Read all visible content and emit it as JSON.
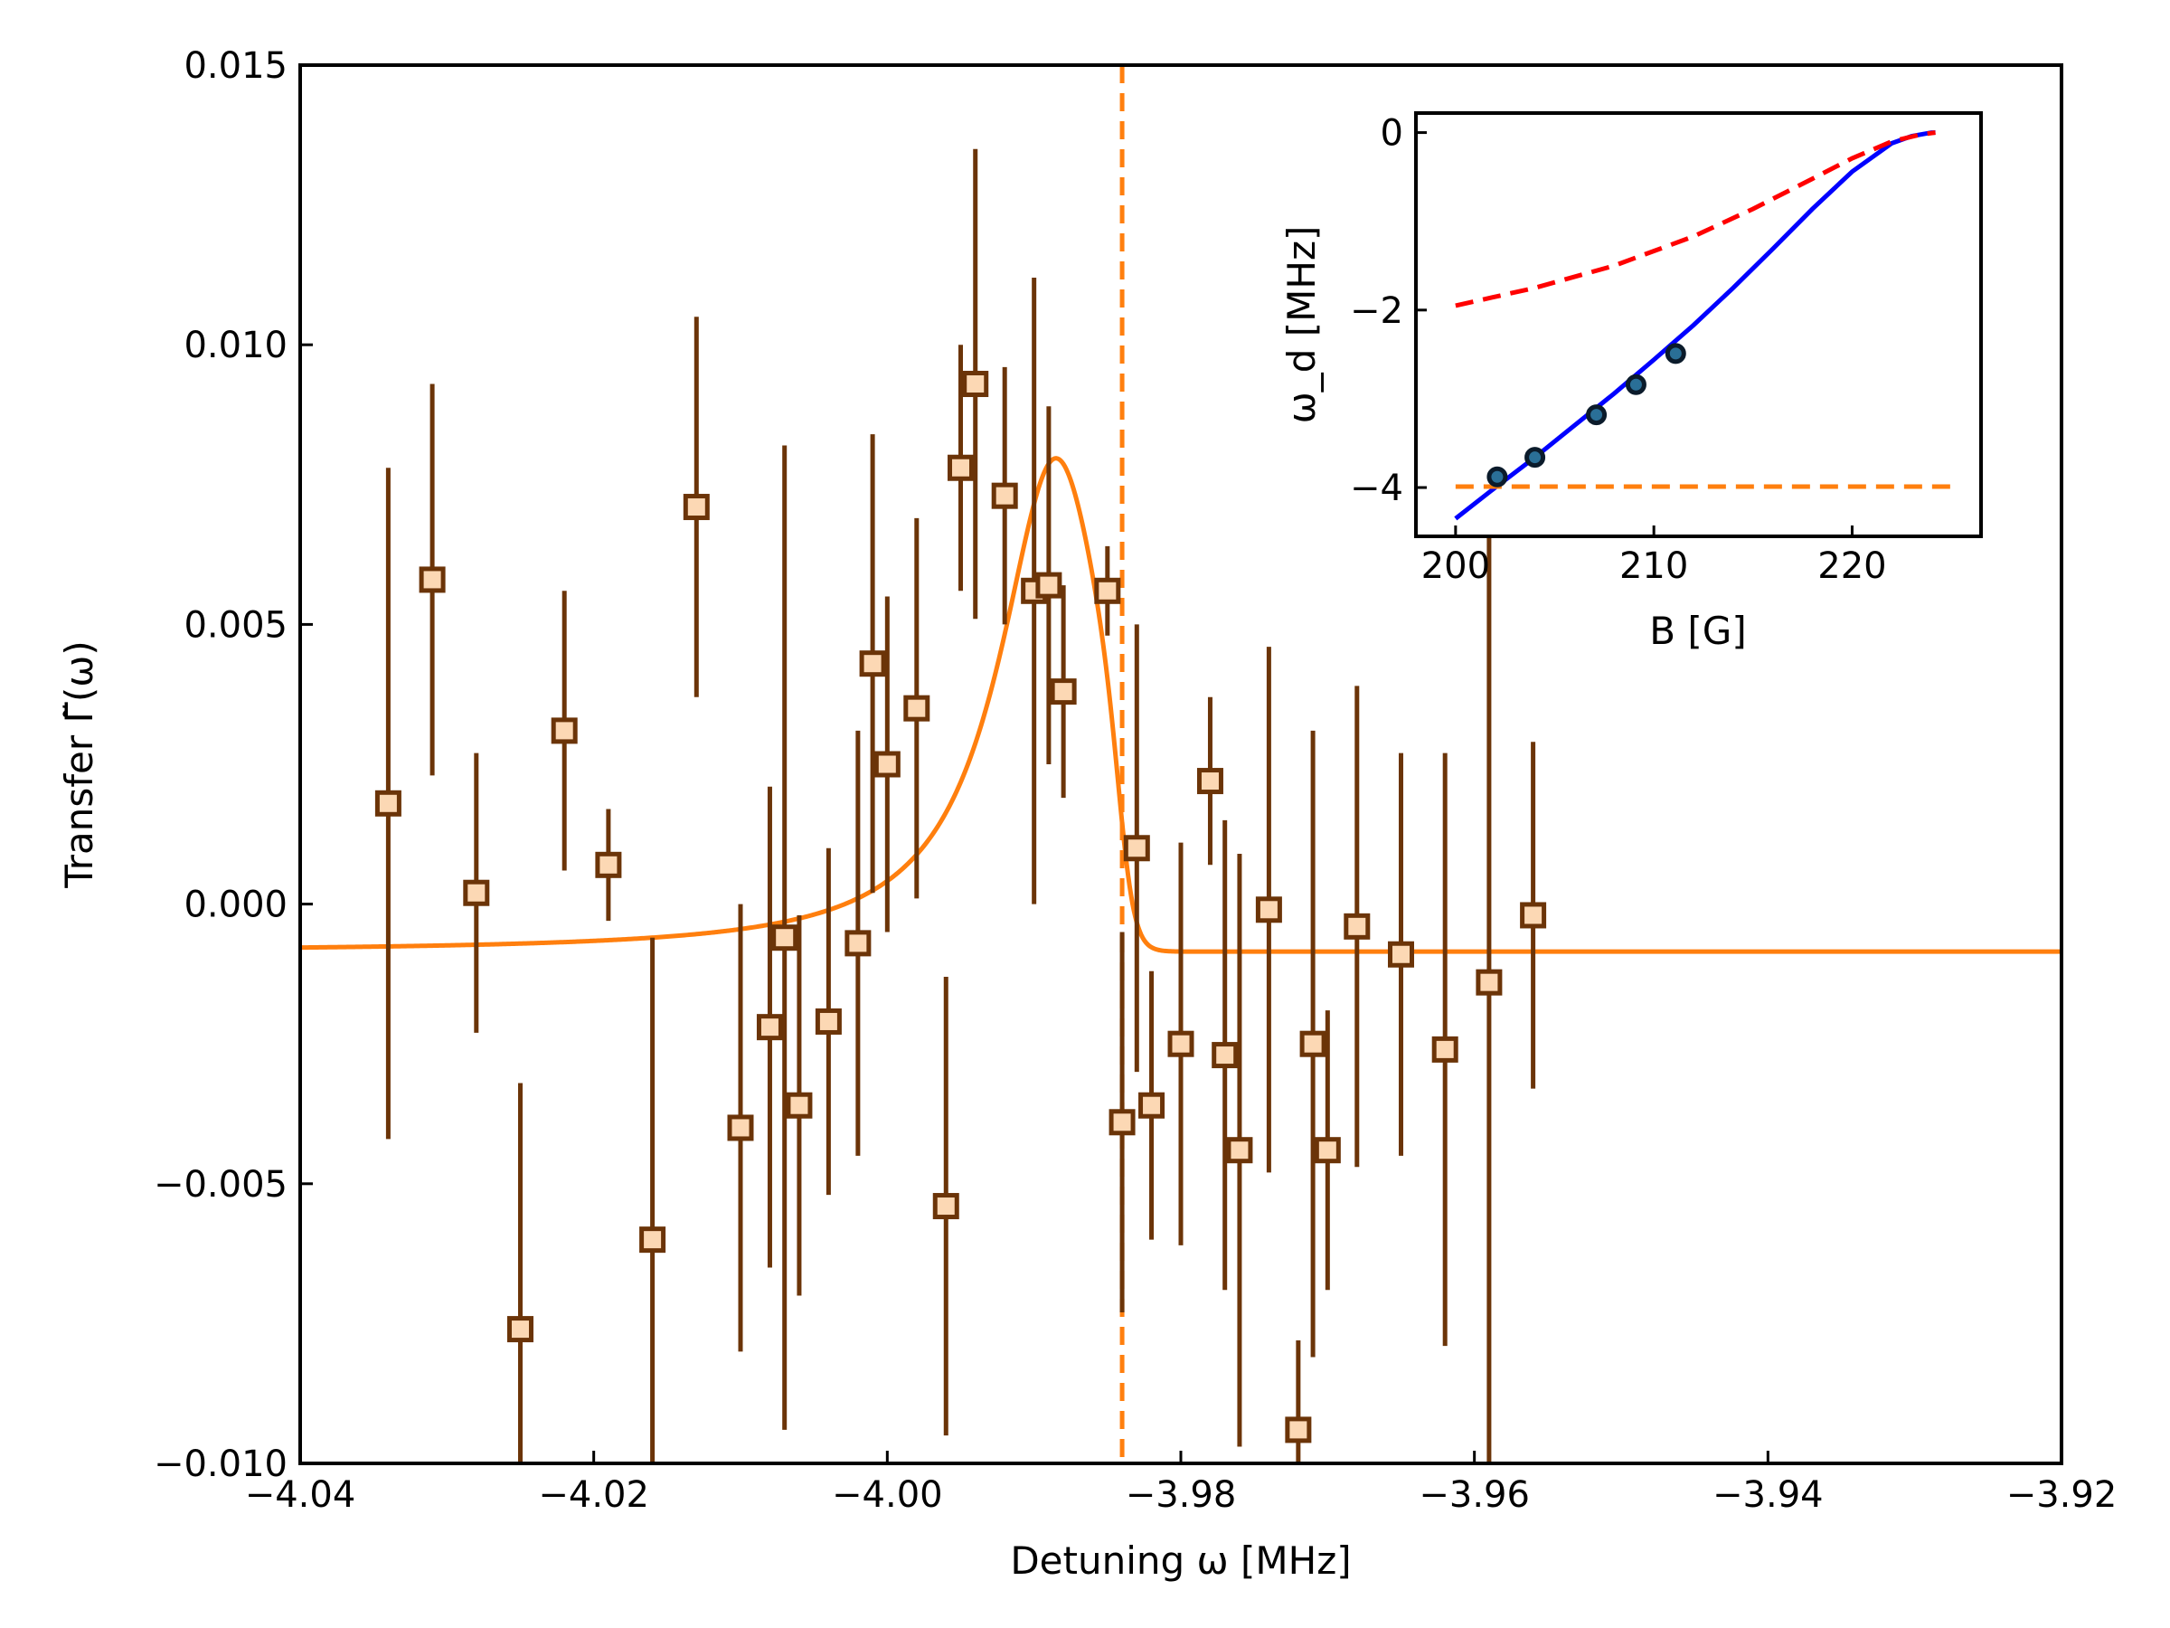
{
  "colors": {
    "errorbar": "#6b3408",
    "marker_face": "#fcd8b4",
    "marker_edge": "#6b3408",
    "fit_line": "#ff7f0e",
    "threshold_line": "#ff7f0e",
    "inset_solid": "#0000ff",
    "inset_dashed": "#ff0000",
    "inset_points_face": "#2a6f97",
    "inset_points_edge": "#0b1b2b"
  },
  "chart_data": [
    {
      "type": "scatter",
      "role": "main",
      "xlabel": "Detuning ω [MHz]",
      "ylabel": "Transfer Γ̃(ω)",
      "xlim": [
        -4.04,
        -3.92
      ],
      "ylim": [
        -0.01,
        0.015
      ],
      "xticks": [
        -4.04,
        -4.02,
        -4.0,
        -3.98,
        -3.96,
        -3.94,
        -3.92
      ],
      "xtick_labels": [
        "−4.04",
        "−4.02",
        "−4.00",
        "−3.98",
        "−3.96",
        "−3.94",
        "−3.92"
      ],
      "yticks": [
        -0.01,
        -0.005,
        0.0,
        0.005,
        0.01,
        0.015
      ],
      "ytick_labels": [
        "−0.010",
        "−0.005",
        "0.000",
        "0.005",
        "0.010",
        "0.015"
      ],
      "grid": false,
      "threshold_x": -3.984,
      "fit": {
        "baseline": -0.00085,
        "peak_value": 0.0078,
        "peak_x": -3.9885,
        "threshold_x": -3.984
      },
      "points": [
        {
          "x": -4.034,
          "y": 0.0018,
          "err": 0.006
        },
        {
          "x": -4.031,
          "y": 0.0058,
          "err": 0.0035
        },
        {
          "x": -4.028,
          "y": 0.0002,
          "err": 0.0025
        },
        {
          "x": -4.025,
          "y": -0.0076,
          "err": 0.0044
        },
        {
          "x": -4.022,
          "y": 0.0031,
          "err": 0.0025
        },
        {
          "x": -4.019,
          "y": 0.0007,
          "err": 0.001
        },
        {
          "x": -4.016,
          "y": -0.006,
          "err": 0.0054
        },
        {
          "x": -4.013,
          "y": 0.0071,
          "err": 0.0034
        },
        {
          "x": -4.01,
          "y": -0.004,
          "err": 0.004
        },
        {
          "x": -4.008,
          "y": -0.0022,
          "err": 0.0043
        },
        {
          "x": -4.007,
          "y": -0.0006,
          "err": 0.0088
        },
        {
          "x": -4.006,
          "y": -0.0036,
          "err": 0.0034
        },
        {
          "x": -4.004,
          "y": -0.0021,
          "err": 0.0031
        },
        {
          "x": -4.002,
          "y": -0.0007,
          "err": 0.0038
        },
        {
          "x": -4.001,
          "y": 0.0043,
          "err": 0.0041
        },
        {
          "x": -4.0,
          "y": 0.0025,
          "err": 0.003
        },
        {
          "x": -3.998,
          "y": 0.0035,
          "err": 0.0034
        },
        {
          "x": -3.996,
          "y": -0.0054,
          "err": 0.0041
        },
        {
          "x": -3.995,
          "y": 0.0078,
          "err": 0.0022
        },
        {
          "x": -3.994,
          "y": 0.0093,
          "err": 0.0042
        },
        {
          "x": -3.992,
          "y": 0.0073,
          "err": 0.0023
        },
        {
          "x": -3.99,
          "y": 0.0056,
          "err": 0.0056
        },
        {
          "x": -3.989,
          "y": 0.0057,
          "err": 0.0032
        },
        {
          "x": -3.988,
          "y": 0.0038,
          "err": 0.0019
        },
        {
          "x": -3.985,
          "y": 0.0056,
          "err": 0.0008
        },
        {
          "x": -3.984,
          "y": -0.0039,
          "err": 0.0034
        },
        {
          "x": -3.983,
          "y": 0.001,
          "err": 0.004
        },
        {
          "x": -3.982,
          "y": -0.0036,
          "err": 0.0024
        },
        {
          "x": -3.98,
          "y": -0.0025,
          "err": 0.0036
        },
        {
          "x": -3.978,
          "y": 0.0022,
          "err": 0.0015
        },
        {
          "x": -3.977,
          "y": -0.0027,
          "err": 0.0042
        },
        {
          "x": -3.976,
          "y": -0.0044,
          "err": 0.0053
        },
        {
          "x": -3.974,
          "y": -0.0001,
          "err": 0.0047
        },
        {
          "x": -3.972,
          "y": -0.0094,
          "err": 0.0016
        },
        {
          "x": -3.971,
          "y": -0.0025,
          "err": 0.0056
        },
        {
          "x": -3.97,
          "y": -0.0044,
          "err": 0.0025
        },
        {
          "x": -3.968,
          "y": -0.0004,
          "err": 0.0043
        },
        {
          "x": -3.965,
          "y": -0.0009,
          "err": 0.0036
        },
        {
          "x": -3.962,
          "y": -0.0026,
          "err": 0.0053
        },
        {
          "x": -3.959,
          "y": -0.0014,
          "err": 0.009
        },
        {
          "x": -3.956,
          "y": -0.0002,
          "err": 0.0031
        }
      ]
    },
    {
      "type": "line",
      "role": "inset",
      "xlabel": "B [G]",
      "ylabel": "ω_d [MHz]",
      "xlim": [
        198,
        226.5
      ],
      "ylim": [
        -4.55,
        0.22
      ],
      "xticks": [
        200,
        210,
        220
      ],
      "xtick_labels": [
        "200",
        "210",
        "220"
      ],
      "yticks": [
        0,
        -2,
        -4
      ],
      "ytick_labels": [
        "0",
        "−2",
        "−4"
      ],
      "series": [
        {
          "style": "solid",
          "x": [
            200,
            202,
            204,
            206,
            208,
            210,
            212,
            214,
            216,
            218,
            220,
            222,
            223,
            224,
            224.2
          ],
          "y": [
            -4.35,
            -4.0,
            -3.66,
            -3.3,
            -2.94,
            -2.56,
            -2.17,
            -1.75,
            -1.31,
            -0.86,
            -0.44,
            -0.12,
            -0.04,
            0.0,
            0.0
          ]
        },
        {
          "style": "dashed",
          "x": [
            200,
            204,
            208,
            212,
            215,
            218,
            220,
            222,
            223.5,
            224.2
          ],
          "y": [
            -1.95,
            -1.75,
            -1.5,
            -1.17,
            -0.86,
            -0.52,
            -0.29,
            -0.1,
            -0.02,
            0.0
          ]
        },
        {
          "style": "dashed",
          "x": [
            200,
            225
          ],
          "y": [
            -3.99,
            -3.99
          ]
        }
      ],
      "points": {
        "x": [
          202.1,
          204.0,
          207.1,
          209.1,
          211.1
        ],
        "y": [
          -3.88,
          -3.66,
          -3.18,
          -2.84,
          -2.49
        ]
      }
    }
  ]
}
